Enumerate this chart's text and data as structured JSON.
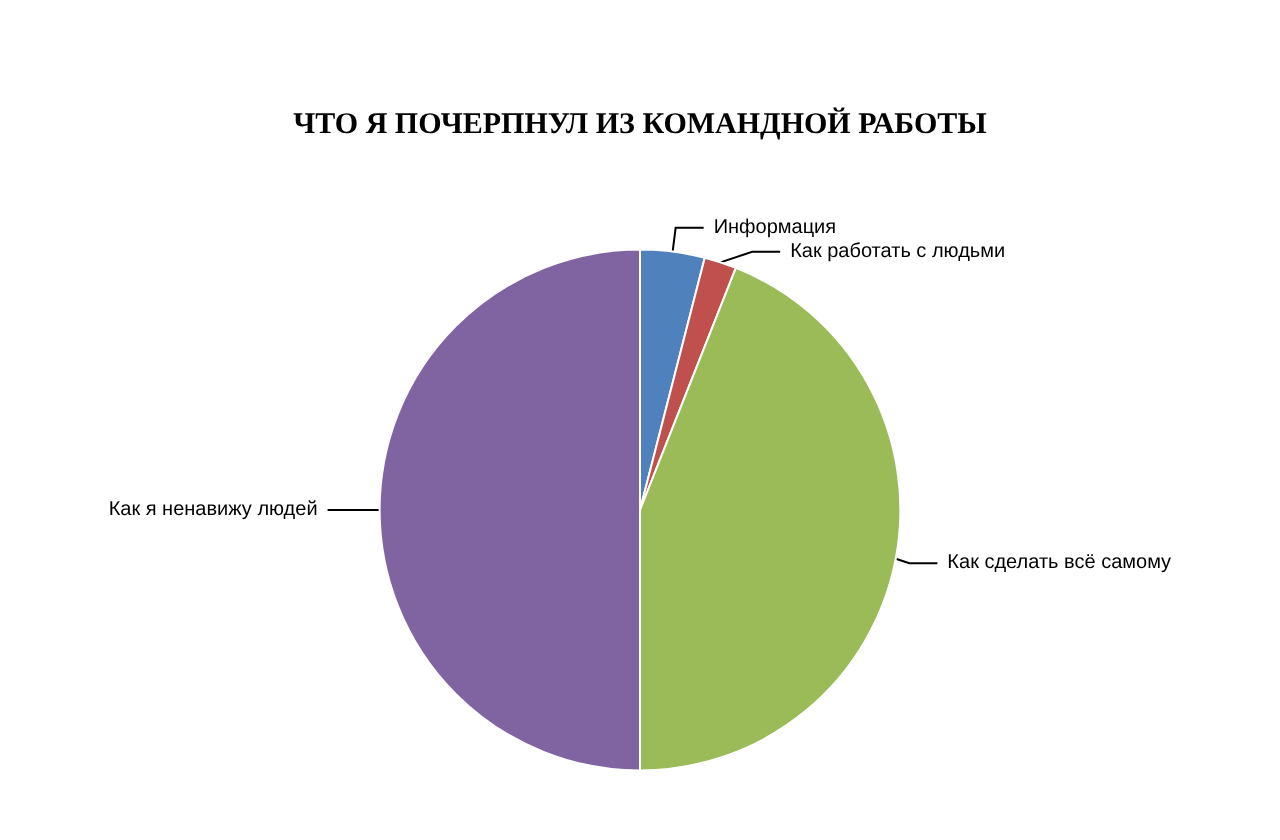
{
  "chart_data": {
    "type": "pie",
    "title": "ЧТО Я ПОЧЕРПНУЛ ИЗ КОМАНДНОЙ РАБОТЫ",
    "categories": [
      "Информация",
      "Как работать с людьми",
      "Как сделать всё самому",
      "Как я ненавижу людей"
    ],
    "values": [
      4,
      2,
      44,
      50
    ],
    "colors": [
      "#4f81bd",
      "#c0504d",
      "#9bbb59",
      "#8064a2"
    ],
    "legend": false
  }
}
